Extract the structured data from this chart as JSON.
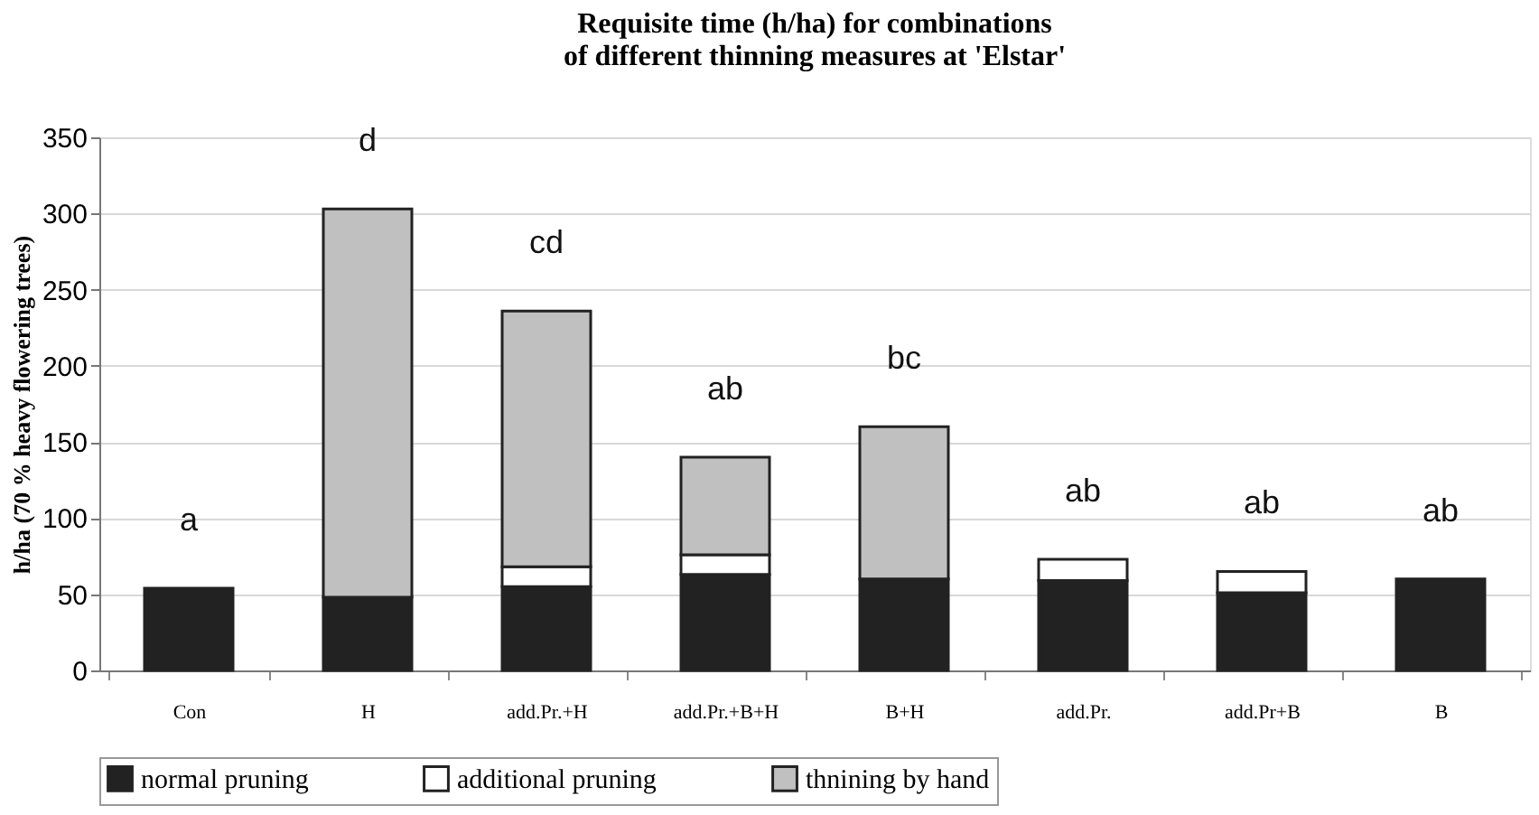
{
  "chart_data": {
    "type": "bar",
    "stacked": true,
    "title": [
      "Requisite time (h/ha) for combinations",
      "of different thinning measures at 'Elstar'"
    ],
    "ylabel": "h/ha (70 % heavy flowering trees)",
    "categories": [
      "Con",
      "H",
      "add.Pr.+H",
      "add.Pr.+B+H",
      "B+H",
      "add.Pr.",
      "add.Pr+B",
      "B"
    ],
    "series": [
      {
        "name": "normal pruning",
        "color": "#222222",
        "values": [
          54,
          48,
          55,
          63,
          60,
          59,
          51,
          60
        ]
      },
      {
        "name": "additional pruning",
        "color": "#ffffff",
        "values": [
          null,
          null,
          13,
          13,
          null,
          14,
          14,
          null
        ]
      },
      {
        "name": "thnining by hand",
        "color": "#c0c0c0",
        "values": [
          null,
          255,
          168,
          64,
          100,
          null,
          null,
          null
        ]
      }
    ],
    "ylim": [
      0,
      350
    ],
    "yticks": [
      0,
      50,
      100,
      150,
      200,
      250,
      300,
      350
    ],
    "grid": "y",
    "legend": "bottom",
    "annotations": [
      "a",
      "d",
      "cd",
      "ab",
      "bc",
      "ab",
      "ab",
      "ab"
    ]
  }
}
